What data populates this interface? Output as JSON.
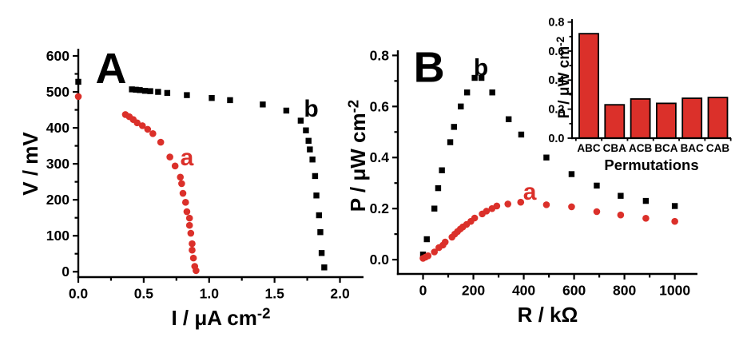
{
  "figure": {
    "background": "#ffffff",
    "ink_color": "#000000",
    "accent_red": "#DB302A"
  },
  "chart_data": [
    {
      "id": "panel_a",
      "type": "scatter",
      "panel_label": "A",
      "xlabel": "I / μA cm^-2",
      "ylabel": "V / mV",
      "xlim": [
        0,
        2.18
      ],
      "ylim": [
        -15,
        620
      ],
      "xticks": [
        0,
        0.5,
        1.0,
        1.5,
        2.0
      ],
      "xtick_labels": [
        "0.0",
        "0.5",
        "1.0",
        "1.5",
        "2.0"
      ],
      "xticks_minor": [
        0.25,
        0.75,
        1.25,
        1.75
      ],
      "yticks": [
        0,
        100,
        200,
        300,
        400,
        500,
        600
      ],
      "ytick_labels": [
        "0",
        "100",
        "200",
        "300",
        "400",
        "500",
        "600"
      ],
      "yticks_minor": [
        50,
        150,
        250,
        350,
        450,
        550
      ],
      "grid": false,
      "series": [
        {
          "name": "b",
          "marker": "square",
          "color": "#000000",
          "points": [
            [
              0.0,
              528
            ],
            [
              0.41,
              507
            ],
            [
              0.44,
              506
            ],
            [
              0.47,
              505
            ],
            [
              0.51,
              503
            ],
            [
              0.55,
              502
            ],
            [
              0.61,
              500
            ],
            [
              0.68,
              497
            ],
            [
              0.83,
              491
            ],
            [
              1.02,
              483
            ],
            [
              1.16,
              477
            ],
            [
              1.41,
              465
            ],
            [
              1.59,
              448
            ],
            [
              1.7,
              420
            ],
            [
              1.74,
              393
            ],
            [
              1.76,
              364
            ],
            [
              1.77,
              340
            ],
            [
              1.79,
              312
            ],
            [
              1.81,
              266
            ],
            [
              1.82,
              212
            ],
            [
              1.84,
              157
            ],
            [
              1.85,
              110
            ],
            [
              1.86,
              52
            ],
            [
              1.88,
              12
            ]
          ]
        },
        {
          "name": "a",
          "marker": "circle",
          "color": "#DB302A",
          "points": [
            [
              0.0,
              487
            ],
            [
              0.36,
              437
            ],
            [
              0.39,
              431
            ],
            [
              0.42,
              423
            ],
            [
              0.45,
              414
            ],
            [
              0.49,
              406
            ],
            [
              0.53,
              396
            ],
            [
              0.57,
              384
            ],
            [
              0.63,
              360
            ],
            [
              0.7,
              319
            ],
            [
              0.74,
              294
            ],
            [
              0.78,
              263
            ],
            [
              0.79,
              245
            ],
            [
              0.8,
              218
            ],
            [
              0.82,
              193
            ],
            [
              0.83,
              167
            ],
            [
              0.85,
              149
            ],
            [
              0.85,
              129
            ],
            [
              0.86,
              107
            ],
            [
              0.87,
              78
            ],
            [
              0.87,
              60
            ],
            [
              0.88,
              38
            ],
            [
              0.89,
              15
            ],
            [
              0.9,
              3
            ]
          ]
        }
      ],
      "annotations": [
        {
          "text": "A",
          "x": 0.25,
          "y": 568,
          "size": 54,
          "color": "#000000"
        },
        {
          "text": "a",
          "x": 0.83,
          "y": 320,
          "size": 30,
          "color": "#DB302A"
        },
        {
          "text": "b",
          "x": 1.78,
          "y": 455,
          "size": 30,
          "color": "#000000"
        }
      ]
    },
    {
      "id": "panel_b",
      "type": "scatter",
      "panel_label": "B",
      "xlabel": "R / kΩ",
      "ylabel": "P / μW cm^-2",
      "xlim": [
        -100,
        1090
      ],
      "ylim": [
        -0.056,
        0.82
      ],
      "xticks": [
        0,
        200,
        400,
        600,
        800,
        1000
      ],
      "xtick_labels": [
        "0",
        "200",
        "400",
        "600",
        "800",
        "1000"
      ],
      "xticks_minor": [
        100,
        300,
        500,
        700,
        900
      ],
      "yticks": [
        0.0,
        0.2,
        0.4,
        0.6,
        0.8
      ],
      "ytick_labels": [
        "0.0",
        "0.2",
        "0.4",
        "0.6",
        "0.8"
      ],
      "yticks_minor": [
        0.1,
        0.3,
        0.5,
        0.7
      ],
      "grid": false,
      "series": [
        {
          "name": "b",
          "marker": "square",
          "color": "#000000",
          "points": [
            [
              0,
              0.02
            ],
            [
              15,
              0.08
            ],
            [
              45,
              0.2
            ],
            [
              60,
              0.28
            ],
            [
              75,
              0.35
            ],
            [
              108,
              0.46
            ],
            [
              123,
              0.52
            ],
            [
              150,
              0.6
            ],
            [
              175,
              0.655
            ],
            [
              205,
              0.712
            ],
            [
              232,
              0.712
            ],
            [
              275,
              0.655
            ],
            [
              340,
              0.55
            ],
            [
              390,
              0.49
            ],
            [
              490,
              0.4
            ],
            [
              590,
              0.335
            ],
            [
              690,
              0.29
            ],
            [
              785,
              0.25
            ],
            [
              885,
              0.23
            ],
            [
              1000,
              0.21
            ]
          ]
        },
        {
          "name": "a",
          "marker": "circle",
          "color": "#DB302A",
          "points": [
            [
              0,
              0.005
            ],
            [
              10,
              0.01
            ],
            [
              20,
              0.015
            ],
            [
              45,
              0.03
            ],
            [
              63,
              0.047
            ],
            [
              79,
              0.057
            ],
            [
              88,
              0.069
            ],
            [
              115,
              0.088
            ],
            [
              126,
              0.1
            ],
            [
              137,
              0.11
            ],
            [
              148,
              0.12
            ],
            [
              158,
              0.128
            ],
            [
              173,
              0.138
            ],
            [
              190,
              0.15
            ],
            [
              205,
              0.163
            ],
            [
              235,
              0.179
            ],
            [
              252,
              0.19
            ],
            [
              274,
              0.2
            ],
            [
              293,
              0.21
            ],
            [
              337,
              0.218
            ],
            [
              388,
              0.225
            ],
            [
              490,
              0.215
            ],
            [
              590,
              0.207
            ],
            [
              690,
              0.188
            ],
            [
              785,
              0.175
            ],
            [
              885,
              0.162
            ],
            [
              1000,
              0.15
            ]
          ]
        }
      ],
      "annotations": [
        {
          "text": "B",
          "x": 24,
          "y": 0.757,
          "size": 54,
          "color": "#000000"
        },
        {
          "text": "b",
          "x": 230,
          "y": 0.756,
          "size": 30,
          "color": "#000000"
        },
        {
          "text": "a",
          "x": 424,
          "y": 0.269,
          "size": 30,
          "color": "#DB302A"
        }
      ]
    },
    {
      "id": "inset",
      "type": "bar",
      "categories": [
        "ABC",
        "CBA",
        "ACB",
        "BCA",
        "BAC",
        "CAB"
      ],
      "values": [
        0.72,
        0.23,
        0.27,
        0.24,
        0.275,
        0.28
      ],
      "xlabel": "Permutations",
      "ylabel": "P / μW cm^-2",
      "ylim": [
        0,
        0.82
      ],
      "yticks": [
        0.0,
        0.2,
        0.4,
        0.6,
        0.8
      ],
      "ytick_labels": [
        "0.0",
        "0.2",
        "0.4",
        "0.6",
        "0.8"
      ],
      "yticks_minor": [
        0.1,
        0.3,
        0.5,
        0.7
      ],
      "grid": false,
      "bar_color": "#DB302A",
      "bar_edge_color": "#000000"
    }
  ]
}
